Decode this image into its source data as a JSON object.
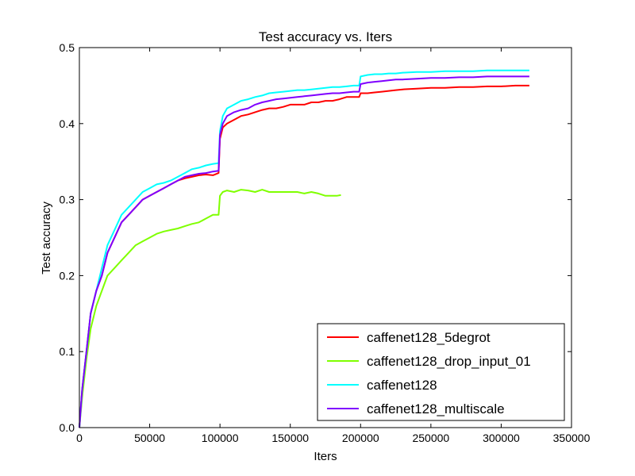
{
  "chart_data": {
    "type": "line",
    "title": "Test accuracy  vs. Iters",
    "xlabel": "Iters",
    "ylabel": "Test accuracy",
    "xlim": [
      0,
      350000
    ],
    "ylim": [
      0.0,
      0.5
    ],
    "xticks": [
      0,
      50000,
      100000,
      150000,
      200000,
      250000,
      300000,
      350000
    ],
    "xtick_labels": [
      "0",
      "50000",
      "100000",
      "150000",
      "200000",
      "250000",
      "300000",
      "350000"
    ],
    "yticks": [
      0.0,
      0.1,
      0.2,
      0.3,
      0.4,
      0.5
    ],
    "ytick_labels": [
      "0.0",
      "0.1",
      "0.2",
      "0.3",
      "0.4",
      "0.5"
    ],
    "grid": false,
    "legend_position": "lower-right",
    "series": [
      {
        "name": "caffenet128_5degrot",
        "color": "#ff0000",
        "x": [
          0,
          2000,
          5000,
          8000,
          12000,
          16000,
          20000,
          25000,
          30000,
          35000,
          40000,
          45000,
          50000,
          55000,
          60000,
          65000,
          70000,
          75000,
          80000,
          85000,
          90000,
          95000,
          99000,
          100000,
          102000,
          105000,
          110000,
          115000,
          120000,
          125000,
          130000,
          135000,
          140000,
          145000,
          150000,
          155000,
          160000,
          165000,
          170000,
          175000,
          180000,
          185000,
          190000,
          195000,
          199000,
          200000,
          205000,
          210000,
          215000,
          220000,
          225000,
          230000,
          240000,
          250000,
          260000,
          270000,
          280000,
          290000,
          300000,
          310000,
          320000
        ],
        "y": [
          0.0,
          0.05,
          0.1,
          0.15,
          0.18,
          0.2,
          0.23,
          0.25,
          0.27,
          0.28,
          0.29,
          0.3,
          0.305,
          0.31,
          0.315,
          0.32,
          0.325,
          0.328,
          0.33,
          0.332,
          0.333,
          0.332,
          0.335,
          0.38,
          0.395,
          0.4,
          0.405,
          0.41,
          0.412,
          0.415,
          0.418,
          0.42,
          0.42,
          0.422,
          0.425,
          0.425,
          0.425,
          0.428,
          0.428,
          0.43,
          0.43,
          0.432,
          0.435,
          0.435,
          0.435,
          0.44,
          0.44,
          0.441,
          0.442,
          0.443,
          0.444,
          0.445,
          0.446,
          0.447,
          0.447,
          0.448,
          0.448,
          0.449,
          0.449,
          0.45,
          0.45
        ]
      },
      {
        "name": "caffenet128_drop_input_01",
        "color": "#7fff00",
        "x": [
          0,
          2000,
          5000,
          8000,
          12000,
          16000,
          20000,
          25000,
          30000,
          35000,
          40000,
          45000,
          50000,
          55000,
          60000,
          65000,
          70000,
          75000,
          80000,
          85000,
          90000,
          95000,
          99000,
          100000,
          102000,
          105000,
          110000,
          115000,
          120000,
          125000,
          130000,
          135000,
          140000,
          145000,
          150000,
          155000,
          160000,
          165000,
          170000,
          175000,
          180000,
          183000,
          186000
        ],
        "y": [
          0.0,
          0.04,
          0.09,
          0.13,
          0.16,
          0.18,
          0.2,
          0.21,
          0.22,
          0.23,
          0.24,
          0.245,
          0.25,
          0.255,
          0.258,
          0.26,
          0.262,
          0.265,
          0.268,
          0.27,
          0.275,
          0.28,
          0.28,
          0.305,
          0.31,
          0.312,
          0.31,
          0.313,
          0.312,
          0.31,
          0.313,
          0.31,
          0.31,
          0.31,
          0.31,
          0.31,
          0.308,
          0.31,
          0.308,
          0.305,
          0.305,
          0.305,
          0.306
        ]
      },
      {
        "name": "caffenet128",
        "color": "#00ffff",
        "x": [
          0,
          2000,
          5000,
          8000,
          12000,
          16000,
          20000,
          25000,
          30000,
          35000,
          40000,
          45000,
          50000,
          55000,
          60000,
          65000,
          70000,
          75000,
          80000,
          85000,
          90000,
          95000,
          99000,
          100000,
          102000,
          105000,
          110000,
          115000,
          120000,
          125000,
          130000,
          135000,
          140000,
          145000,
          150000,
          155000,
          160000,
          165000,
          170000,
          175000,
          180000,
          185000,
          190000,
          195000,
          199000,
          200000,
          205000,
          210000,
          215000,
          220000,
          225000,
          230000,
          240000,
          250000,
          260000,
          270000,
          280000,
          290000,
          300000,
          310000,
          320000
        ],
        "y": [
          0.0,
          0.05,
          0.1,
          0.15,
          0.18,
          0.21,
          0.24,
          0.26,
          0.28,
          0.29,
          0.3,
          0.31,
          0.315,
          0.32,
          0.322,
          0.325,
          0.33,
          0.335,
          0.34,
          0.342,
          0.345,
          0.347,
          0.348,
          0.39,
          0.41,
          0.42,
          0.425,
          0.43,
          0.432,
          0.435,
          0.437,
          0.44,
          0.441,
          0.442,
          0.443,
          0.444,
          0.444,
          0.445,
          0.446,
          0.447,
          0.448,
          0.448,
          0.449,
          0.45,
          0.45,
          0.462,
          0.464,
          0.465,
          0.465,
          0.466,
          0.466,
          0.467,
          0.468,
          0.468,
          0.469,
          0.469,
          0.469,
          0.47,
          0.47,
          0.47,
          0.47
        ]
      },
      {
        "name": "caffenet128_multiscale",
        "color": "#7f00ff",
        "x": [
          0,
          2000,
          5000,
          8000,
          12000,
          16000,
          20000,
          25000,
          30000,
          35000,
          40000,
          45000,
          50000,
          55000,
          60000,
          65000,
          70000,
          75000,
          80000,
          85000,
          90000,
          95000,
          99000,
          100000,
          102000,
          105000,
          110000,
          115000,
          120000,
          125000,
          130000,
          135000,
          140000,
          145000,
          150000,
          155000,
          160000,
          165000,
          170000,
          175000,
          180000,
          185000,
          190000,
          195000,
          199000,
          200000,
          205000,
          210000,
          215000,
          220000,
          225000,
          230000,
          240000,
          250000,
          260000,
          270000,
          280000,
          290000,
          300000,
          310000,
          320000
        ],
        "y": [
          0.0,
          0.05,
          0.1,
          0.15,
          0.18,
          0.2,
          0.23,
          0.25,
          0.27,
          0.28,
          0.29,
          0.3,
          0.305,
          0.31,
          0.315,
          0.32,
          0.325,
          0.33,
          0.332,
          0.334,
          0.335,
          0.337,
          0.338,
          0.385,
          0.4,
          0.41,
          0.415,
          0.418,
          0.42,
          0.425,
          0.428,
          0.43,
          0.432,
          0.433,
          0.434,
          0.435,
          0.436,
          0.437,
          0.438,
          0.439,
          0.44,
          0.44,
          0.441,
          0.442,
          0.442,
          0.452,
          0.454,
          0.455,
          0.456,
          0.457,
          0.458,
          0.458,
          0.459,
          0.46,
          0.46,
          0.461,
          0.461,
          0.462,
          0.462,
          0.462,
          0.462
        ]
      }
    ]
  }
}
